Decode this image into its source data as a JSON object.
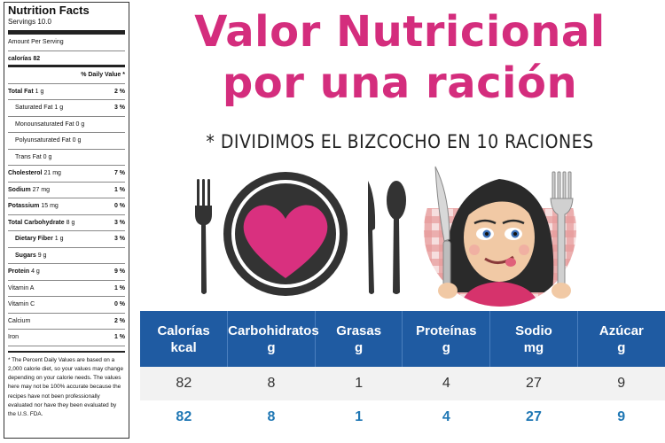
{
  "nutrition_label": {
    "title": "Nutrition Facts",
    "servings": "Servings 10.0",
    "amount_per_serving": "Amount Per Serving",
    "calories": "calorías 82",
    "daily_value_header": "% Daily Value *",
    "rows": [
      {
        "label": "Total Fat",
        "amount": "1 g",
        "pct": "2 %",
        "bold": true,
        "indent": false
      },
      {
        "label": "Saturated Fat",
        "amount": "1 g",
        "pct": "3 %",
        "bold": false,
        "indent": true
      },
      {
        "label": "Monounsaturated Fat",
        "amount": "0 g",
        "pct": "",
        "bold": false,
        "indent": true
      },
      {
        "label": "Polyunsaturated Fat",
        "amount": "0 g",
        "pct": "",
        "bold": false,
        "indent": true
      },
      {
        "label": "Trans Fat",
        "amount": "0 g",
        "pct": "",
        "bold": false,
        "indent": true
      },
      {
        "label": "Cholesterol",
        "amount": "21 mg",
        "pct": "7 %",
        "bold": true,
        "indent": false
      },
      {
        "label": "Sodium",
        "amount": "27 mg",
        "pct": "1 %",
        "bold": true,
        "indent": false
      },
      {
        "label": "Potassium",
        "amount": "15 mg",
        "pct": "0 %",
        "bold": true,
        "indent": false
      },
      {
        "label": "Total Carbohydrate",
        "amount": "8 g",
        "pct": "3 %",
        "bold": true,
        "indent": false
      },
      {
        "label": "Dietary Fiber",
        "amount": "1 g",
        "pct": "3 %",
        "bold": true,
        "indent": true
      },
      {
        "label": "Sugars",
        "amount": "9 g",
        "pct": "",
        "bold": true,
        "indent": true
      },
      {
        "label": "Protein",
        "amount": "4 g",
        "pct": "9 %",
        "bold": true,
        "indent": false
      },
      {
        "label": "Vitamin A",
        "amount": "",
        "pct": "1 %",
        "bold": false,
        "indent": false
      },
      {
        "label": "Vitamin C",
        "amount": "",
        "pct": "0 %",
        "bold": false,
        "indent": false
      },
      {
        "label": "Calcium",
        "amount": "",
        "pct": "2 %",
        "bold": false,
        "indent": false
      },
      {
        "label": "Iron",
        "amount": "",
        "pct": "1 %",
        "bold": false,
        "indent": false
      }
    ],
    "footnote": "* The Percent Daily Values are based on a 2,000 calorie diet, so your values may change depending on your calorie needs. The values here may not be 100% accurate because the recipes have not been professionally evaluated nor have they been evaluated by the U.S. FDA."
  },
  "headline": {
    "line1": "Valor Nutricional",
    "line2": "por una ración",
    "subtitle": "* DIVIDIMOS EL BIZCOCHO EN 10 RACIONES"
  },
  "illustration": {
    "icons": [
      "fork-icon",
      "plate-icon",
      "heart-icon",
      "knife-icon",
      "spoon-icon"
    ],
    "heart_color": "#d9307f",
    "ink_color": "#333333"
  },
  "avatar": {
    "icons": [
      "knife-icon",
      "fork-icon"
    ],
    "tablecloth_color": "#d64545"
  },
  "table": {
    "header_color": "#1f5ba2",
    "columns": [
      {
        "name": "Calorías",
        "unit": "kcal"
      },
      {
        "name": "Carbohidratos",
        "unit": "g"
      },
      {
        "name": "Grasas",
        "unit": "g"
      },
      {
        "name": "Proteínas",
        "unit": "g"
      },
      {
        "name": "Sodio",
        "unit": "mg"
      },
      {
        "name": "Azúcar",
        "unit": "g"
      }
    ],
    "rows": [
      [
        "82",
        "8",
        "1",
        "4",
        "27",
        "9"
      ],
      [
        "82",
        "8",
        "1",
        "4",
        "27",
        "9"
      ]
    ]
  }
}
